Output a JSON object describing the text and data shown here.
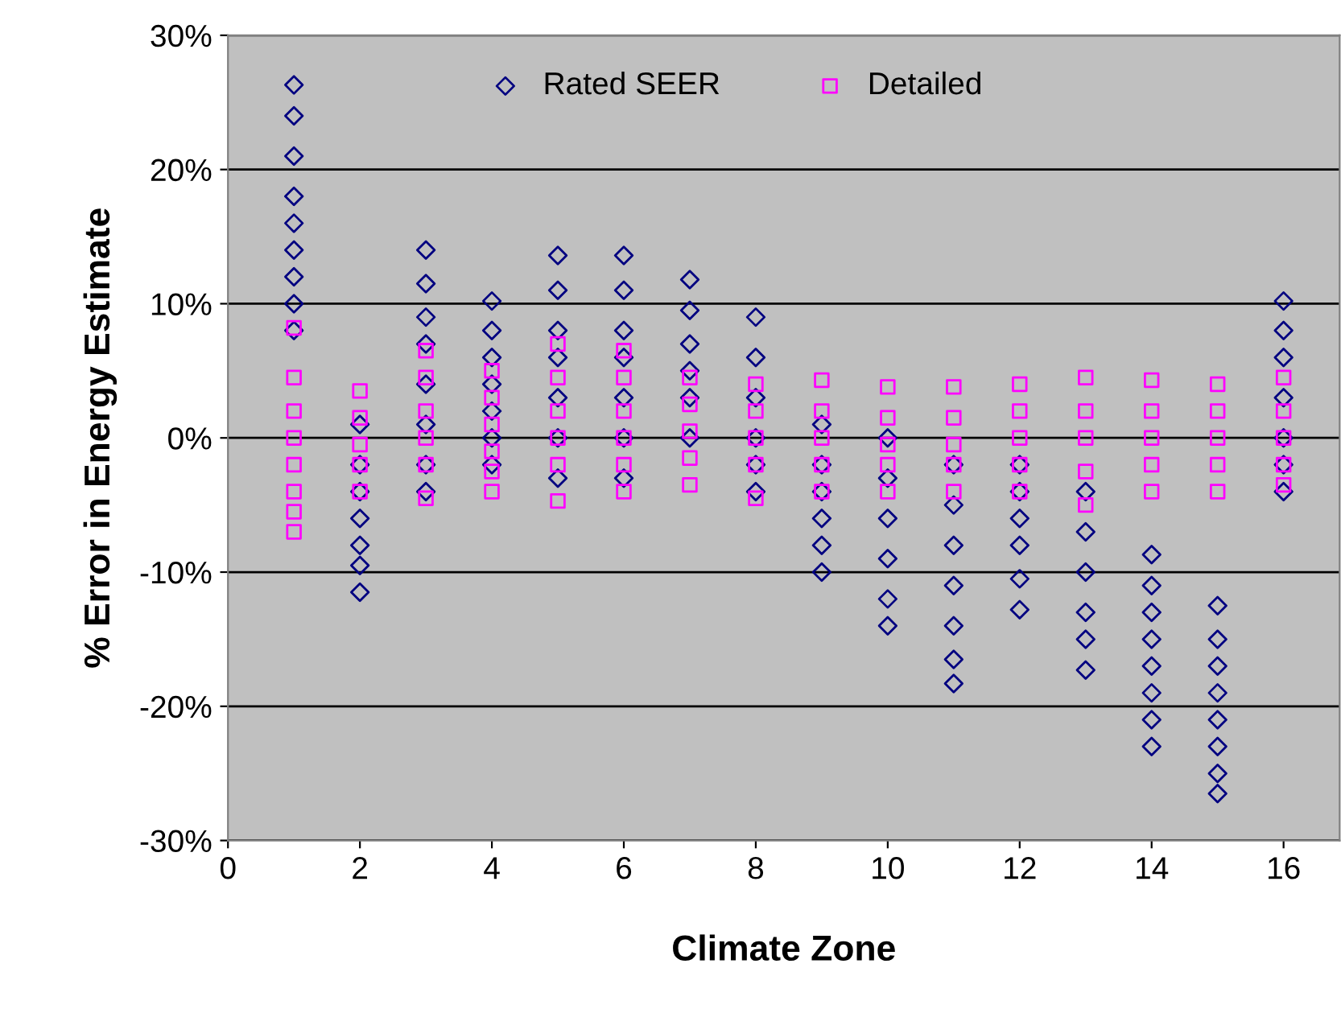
{
  "chart_data": {
    "type": "scatter",
    "xlabel": "Climate Zone",
    "ylabel": "% Error in Energy Estimate",
    "xlim": [
      0,
      16.85
    ],
    "xticks": [
      0,
      2,
      4,
      6,
      8,
      10,
      12,
      14,
      16
    ],
    "ylim": [
      -30,
      30
    ],
    "yticks": [
      {
        "value": -30,
        "label": "-30%"
      },
      {
        "value": -20,
        "label": "-20%"
      },
      {
        "value": -10,
        "label": "-10%"
      },
      {
        "value": 0,
        "label": "0%"
      },
      {
        "value": 10,
        "label": "10%"
      },
      {
        "value": 20,
        "label": "20%"
      },
      {
        "value": 30,
        "label": "30%"
      }
    ],
    "grid": "y",
    "legend": "top",
    "series": [
      {
        "name": "Rated SEER",
        "color": "#000080",
        "marker": "diamond",
        "x": [
          1,
          1,
          1,
          1,
          1,
          1,
          1,
          1,
          1,
          2,
          2,
          2,
          2,
          2,
          2,
          2,
          3,
          3,
          3,
          3,
          3,
          3,
          3,
          3,
          4,
          4,
          4,
          4,
          4,
          4,
          4,
          5,
          5,
          5,
          5,
          5,
          5,
          5,
          6,
          6,
          6,
          6,
          6,
          6,
          6,
          7,
          7,
          7,
          7,
          7,
          7,
          8,
          8,
          8,
          8,
          8,
          8,
          9,
          9,
          9,
          9,
          9,
          9,
          10,
          10,
          10,
          10,
          10,
          10,
          11,
          11,
          11,
          11,
          11,
          11,
          11,
          12,
          12,
          12,
          12,
          12,
          12,
          13,
          13,
          13,
          13,
          13,
          13,
          14,
          14,
          14,
          14,
          14,
          14,
          14,
          14,
          15,
          15,
          15,
          15,
          15,
          15,
          15,
          15,
          16,
          16,
          16,
          16,
          16,
          16,
          16
        ],
        "values": [
          26.3,
          24,
          21,
          18,
          16,
          14,
          12,
          10,
          8,
          1,
          -2,
          -4,
          -6,
          -8,
          -9.5,
          -11.5,
          14,
          11.5,
          9,
          7,
          4,
          1,
          -2,
          -4,
          10.2,
          8,
          6,
          4,
          2,
          0,
          -2,
          13.6,
          11,
          8,
          6,
          3,
          0,
          -3,
          13.6,
          11,
          8,
          6,
          3,
          0,
          -3,
          11.8,
          9.5,
          7,
          5,
          3,
          0,
          9,
          6,
          3,
          0,
          -2,
          -4,
          1,
          -2,
          -4,
          -6,
          -8,
          -10,
          0,
          -3,
          -6,
          -9,
          -12,
          -14,
          -2,
          -5,
          -8,
          -11,
          -14,
          -16.5,
          -18.3,
          -2,
          -4,
          -6,
          -8,
          -10.5,
          -12.8,
          -4,
          -7,
          -10,
          -13,
          -15,
          -17.3,
          -8.7,
          -11,
          -13,
          -15,
          -17,
          -19,
          -21,
          -23,
          -12.5,
          -15,
          -17,
          -19,
          -21,
          -23,
          -25,
          -26.5,
          10.2,
          8,
          6,
          3,
          0,
          -2,
          -4
        ]
      },
      {
        "name": "Detailed",
        "color": "#ff00ff",
        "marker": "square",
        "x": [
          1,
          1,
          1,
          1,
          1,
          1,
          1,
          1,
          2,
          2,
          2,
          2,
          2,
          3,
          3,
          3,
          3,
          3,
          3,
          4,
          4,
          4,
          4,
          4,
          4,
          5,
          5,
          5,
          5,
          5,
          5,
          6,
          6,
          6,
          6,
          6,
          6,
          7,
          7,
          7,
          7,
          7,
          8,
          8,
          8,
          8,
          8,
          9,
          9,
          9,
          9,
          9,
          10,
          10,
          10,
          10,
          10,
          11,
          11,
          11,
          11,
          11,
          12,
          12,
          12,
          12,
          12,
          13,
          13,
          13,
          13,
          13,
          14,
          14,
          14,
          14,
          14,
          15,
          15,
          15,
          15,
          15,
          16,
          16,
          16,
          16,
          16
        ],
        "values": [
          8.2,
          4.5,
          2,
          0,
          -2,
          -4,
          -5.5,
          -7,
          3.5,
          1.5,
          -0.5,
          -2,
          -4,
          6.5,
          4.5,
          2,
          0,
          -2,
          -4.5,
          5,
          3,
          1,
          -1,
          -2.5,
          -4,
          7,
          4.5,
          2,
          0,
          -2,
          -4.7,
          6.5,
          4.5,
          2,
          0,
          -2,
          -4,
          4.5,
          2.5,
          0.5,
          -1.5,
          -3.5,
          4,
          2,
          0,
          -2,
          -4.5,
          4.3,
          2,
          0,
          -2,
          -4,
          3.8,
          1.5,
          -0.5,
          -2,
          -4,
          3.8,
          1.5,
          -0.5,
          -2,
          -4,
          4,
          2,
          0,
          -2,
          -4,
          4.5,
          2,
          0,
          -2.5,
          -5,
          4.3,
          2,
          0,
          -2,
          -4,
          4,
          2,
          0,
          -2,
          -4,
          4.5,
          2,
          0,
          -2,
          -3.5
        ]
      }
    ]
  }
}
